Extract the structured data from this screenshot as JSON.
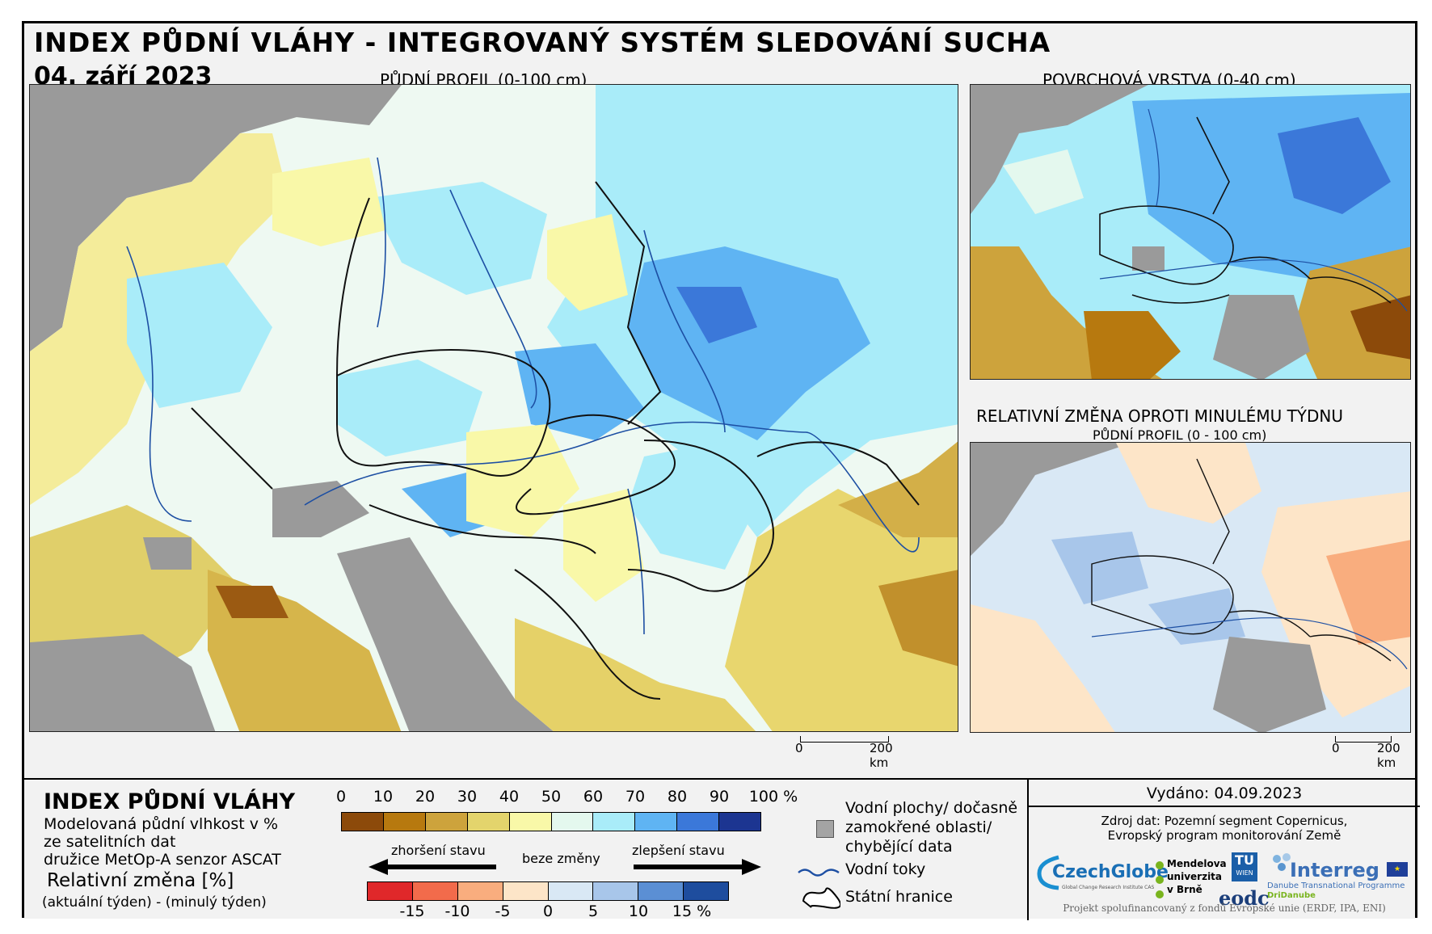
{
  "header": {
    "title": "INDEX PŮDNÍ VLÁHY - INTEGROVANÝ SYSTÉM SLEDOVÁNÍ SUCHA",
    "date": "04. září 2023"
  },
  "maps": {
    "main_label": "PŮDNÍ PROFIL (0-100 cm)",
    "surface_label": "POVRCHOVÁ VRSTVA (0-40 cm)",
    "change_label": "RELATIVNÍ ZMĚNA OPROTI MINULÉMU TÝDNU",
    "change_sublabel": "PŮDNÍ PROFIL (0 - 100 cm)",
    "scale_main": {
      "zero": "0",
      "end": "200 km"
    },
    "scale_small": {
      "zero": "0",
      "end": "200 km"
    }
  },
  "legend": {
    "title": "INDEX PŮDNÍ VLÁHY",
    "desc_line1": "Modelovaná půdní vlhkost v %",
    "desc_line2": "ze satelitních dat",
    "desc_line3": "družice MetOp-A senzor ASCAT",
    "rel_title": "Relativní změna [%]",
    "rel_sub": "(aktuální týden) - (minulý týden)",
    "index_ticks": [
      "0",
      "10",
      "20",
      "30",
      "40",
      "50",
      "60",
      "70",
      "80",
      "90",
      "100 %"
    ],
    "index_colors": [
      "#8c4a0a",
      "#b7790f",
      "#cda33c",
      "#e3d46c",
      "#f9f8a8",
      "#e4f8ee",
      "#a9ecf9",
      "#5fb4f3",
      "#3b78d9",
      "#1c3591"
    ],
    "change_ticks": [
      "-15",
      "-10",
      "-5",
      "0",
      "5",
      "10",
      "15 %"
    ],
    "change_colors": [
      "#e0282a",
      "#f26b4b",
      "#f9ad7e",
      "#fde5c8",
      "#d9e8f5",
      "#a8c6ea",
      "#5b8fd4",
      "#1e4d9e"
    ],
    "arrow_worse": "zhoršení stavu",
    "arrow_none": "beze změny",
    "arrow_better": "zlepšení stavu",
    "water_areas_1": "Vodní plochy/ dočasně",
    "water_areas_2": "zamokřené oblasti/",
    "water_areas_3": "chybějící data",
    "rivers": "Vodní toky",
    "borders": "Státní hranice"
  },
  "info": {
    "issued": "Vydáno: 04.09.2023",
    "source_1": "Zdroj dat: Pozemní segment Copernicus,",
    "source_2": "Evropský program monitorování Země",
    "logo_czechglobe": "CzechGlobe",
    "logo_czechglobe_sub": "Global Change Research Institute CAS",
    "logo_mendel_1": "Mendelova",
    "logo_mendel_2": "univerzita",
    "logo_mendel_3": "v Brně",
    "logo_tu_1": "TU",
    "logo_tu_2": "WIEN",
    "logo_eodc": "eodc",
    "logo_interreg": "Interreg",
    "logo_interreg_sub1": "Danube Transnational Programme",
    "logo_interreg_sub2": "DriDanube",
    "footer": "Projekt spolufinancovaný z fondů Evropské unie (ERDF, IPA, ENI)"
  }
}
